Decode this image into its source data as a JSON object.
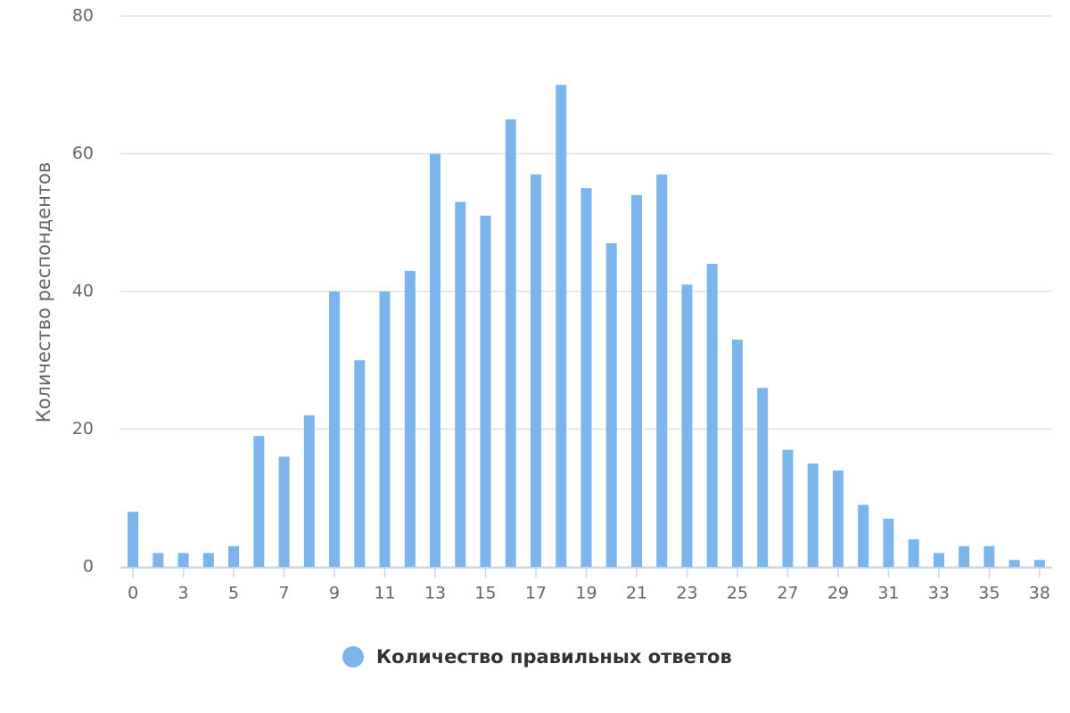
{
  "chart_data": {
    "type": "bar",
    "y_label": "Количество респондентов",
    "categories": [
      "0",
      null,
      "3",
      null,
      "5",
      null,
      "7",
      null,
      "9",
      null,
      "11",
      null,
      "13",
      null,
      "15",
      null,
      "17",
      null,
      "19",
      null,
      "21",
      null,
      "23",
      null,
      "25",
      null,
      "27",
      null,
      "29",
      null,
      "31",
      null,
      "33",
      null,
      "35",
      null,
      "38"
    ],
    "series": [
      {
        "name": "Количество правильных ответов",
        "color": "#7cb5ec",
        "values": [
          8,
          2,
          2,
          2,
          3,
          19,
          16,
          22,
          40,
          30,
          40,
          43,
          60,
          53,
          51,
          65,
          57,
          70,
          55,
          47,
          54,
          57,
          41,
          44,
          33,
          26,
          17,
          15,
          14,
          9,
          7,
          4,
          2,
          3,
          3,
          1,
          1
        ]
      }
    ],
    "ylim": [
      0,
      80
    ],
    "yticks": [
      0,
      20,
      40,
      60,
      80
    ],
    "grid": true
  }
}
